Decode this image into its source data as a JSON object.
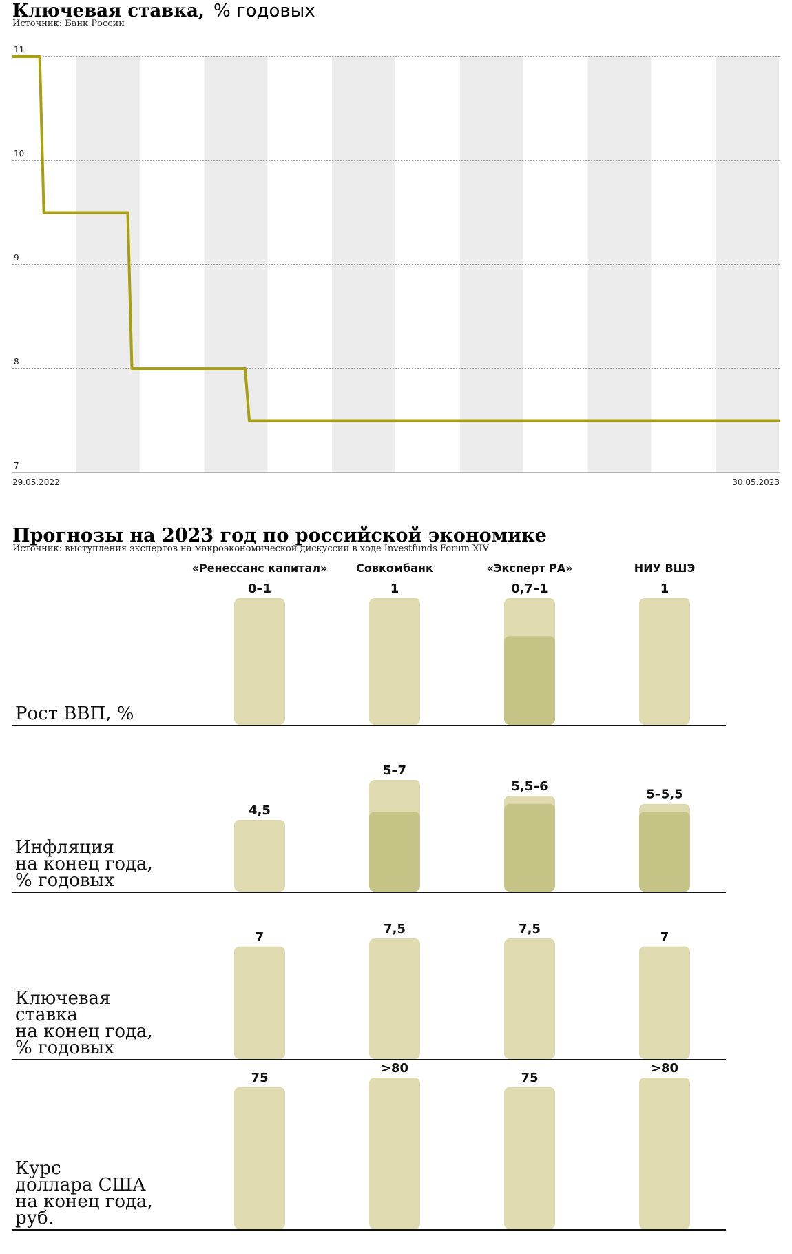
{
  "chart_data": [
    {
      "type": "line",
      "title": "Ключевая ставка,",
      "title_suffix": "% годовых",
      "source": "Источник: Банк России",
      "y_ticks": [
        "11",
        "10",
        "9",
        "8",
        "7"
      ],
      "ylim": [
        7,
        11
      ],
      "x_start_label": "29.05.2022",
      "x_end_label": "30.05.2023",
      "x_range": [
        "2022-05-29",
        "2023-05-30"
      ],
      "series": [
        {
          "values": [
            {
              "x": "2022-05-29",
              "y": 11
            },
            {
              "x": "2022-06-13",
              "y": 9.5
            },
            {
              "x": "2022-07-25",
              "y": 8
            },
            {
              "x": "2022-09-19",
              "y": 7.5
            },
            {
              "x": "2023-05-30",
              "y": 7.5
            }
          ]
        }
      ],
      "step": true,
      "grid": true,
      "line_color": "#a89f12",
      "band_color": "#ececec"
    },
    {
      "type": "bar",
      "title": "Прогнозы на 2023 год по российской экономике",
      "source": "Источник: выступления экспертов на макроэкономической дискуссии в ходе Investfunds Forum XIV",
      "categories": [
        "«Ренессанс капитал»",
        "Совкомбанк",
        "«Эксперт РА»",
        "НИУ ВШЭ"
      ],
      "rows": [
        {
          "label_lines": [
            "Рост ВВП, %"
          ],
          "value_labels": [
            "0–1",
            "1",
            "0,7–1",
            "1"
          ],
          "ranges": [
            [
              0,
              1
            ],
            [
              0,
              1
            ],
            [
              0.7,
              1
            ],
            [
              0,
              1
            ]
          ],
          "scale_max": 1
        },
        {
          "label_lines": [
            "Инфляция",
            "на конец года,",
            "% годовых"
          ],
          "value_labels": [
            "4,5",
            "5–7",
            "5,5–6",
            "5–5,5"
          ],
          "ranges": [
            [
              0,
              4.5
            ],
            [
              5,
              7
            ],
            [
              5.5,
              6
            ],
            [
              5,
              5.5
            ]
          ],
          "scale_max": 7
        },
        {
          "label_lines": [
            "Ключевая",
            "ставка",
            "на конец года,",
            "% годовых"
          ],
          "value_labels": [
            "7",
            "7,5",
            "7,5",
            "7"
          ],
          "ranges": [
            [
              0,
              7
            ],
            [
              0,
              7.5
            ],
            [
              0,
              7.5
            ],
            [
              0,
              7
            ]
          ],
          "scale_max": 7.5
        },
        {
          "label_lines": [
            "Курс",
            "доллара США",
            "на конец года,",
            "руб."
          ],
          "value_labels": [
            "75",
            ">80",
            "75",
            ">80"
          ],
          "ranges": [
            [
              0,
              75
            ],
            [
              0,
              80
            ],
            [
              0,
              75
            ],
            [
              0,
              80
            ]
          ],
          "scale_max": 80
        }
      ],
      "colors": {
        "bar": "#dfdab0",
        "bar_range": "#c6c387",
        "rule": "#111111"
      }
    }
  ]
}
